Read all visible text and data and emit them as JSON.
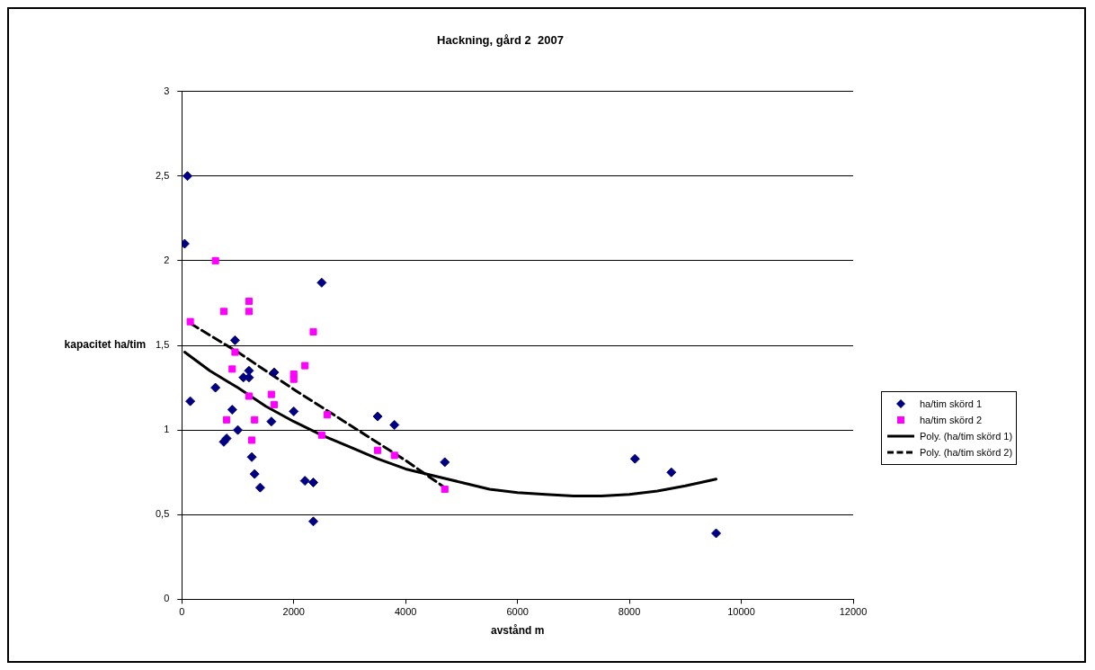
{
  "chart_data": {
    "type": "scatter",
    "title": "Hackning, gård 2  2007",
    "xlabel": "avstånd m",
    "ylabel": "kapacitet ha/tim",
    "xlim": [
      0,
      12000
    ],
    "xticks": [
      0,
      2000,
      4000,
      6000,
      8000,
      10000,
      12000
    ],
    "ylim": [
      0,
      3
    ],
    "yticks": [
      0,
      {
        "value": 0.5,
        "label": "0,5"
      },
      1,
      {
        "value": 1.5,
        "label": "1,5"
      },
      2,
      {
        "value": 2.5,
        "label": "2,5"
      },
      3
    ],
    "grid": "y",
    "legend": "right",
    "series": [
      {
        "name": "ha/tim skörd  1",
        "type": "scatter",
        "marker": "diamond",
        "color": "#000080",
        "x": [
          50,
          100,
          150,
          600,
          750,
          800,
          900,
          950,
          1000,
          1100,
          1200,
          1200,
          1250,
          1300,
          1400,
          1600,
          1650,
          2000,
          2200,
          2350,
          2350,
          2500,
          3500,
          3800,
          4700,
          8100,
          8750,
          9550
        ],
        "values": [
          2.1,
          2.5,
          1.17,
          1.25,
          0.93,
          0.95,
          1.12,
          1.53,
          1.0,
          1.31,
          1.35,
          1.31,
          0.84,
          0.74,
          0.66,
          1.05,
          1.34,
          1.11,
          0.7,
          0.69,
          0.46,
          1.87,
          1.08,
          1.03,
          0.81,
          0.83,
          0.75,
          0.39
        ]
      },
      {
        "name": "ha/tim skörd  2",
        "type": "scatter",
        "marker": "square",
        "color": "#ff00ff",
        "x": [
          150,
          600,
          750,
          800,
          900,
          950,
          1200,
          1200,
          1200,
          1250,
          1300,
          1600,
          1650,
          2000,
          2000,
          2200,
          2350,
          2500,
          2600,
          3500,
          3800,
          4700
        ],
        "values": [
          1.64,
          2.0,
          1.7,
          1.06,
          1.36,
          1.46,
          1.76,
          1.7,
          1.2,
          0.94,
          1.06,
          1.21,
          1.15,
          1.33,
          1.3,
          1.38,
          1.58,
          0.97,
          1.09,
          0.88,
          0.85,
          0.65
        ]
      },
      {
        "name": "Poly. (ha/tim skörd  1)",
        "type": "line",
        "marker": "none",
        "line_style": "solid",
        "color": "#000000",
        "x": [
          50,
          500,
          1000,
          1500,
          2000,
          2500,
          3000,
          3500,
          4000,
          4500,
          5000,
          5500,
          6000,
          6500,
          7000,
          7500,
          8000,
          8500,
          9000,
          9550
        ],
        "values": [
          1.46,
          1.35,
          1.25,
          1.14,
          1.05,
          0.97,
          0.9,
          0.83,
          0.77,
          0.73,
          0.69,
          0.65,
          0.63,
          0.62,
          0.61,
          0.61,
          0.62,
          0.64,
          0.67,
          0.71
        ]
      },
      {
        "name": "Poly. (ha/tim skörd  2)",
        "type": "line",
        "marker": "none",
        "line_style": "dashed",
        "color": "#000000",
        "x": [
          150,
          1000,
          2000,
          3000,
          4000,
          4700
        ],
        "values": [
          1.63,
          1.46,
          1.24,
          1.03,
          0.82,
          0.66
        ]
      }
    ]
  }
}
